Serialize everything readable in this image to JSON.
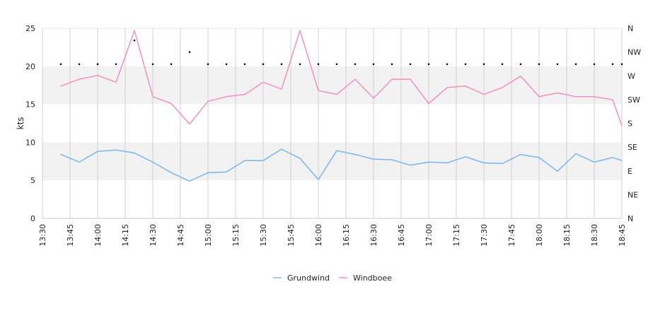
{
  "chart_data": {
    "type": "line",
    "title": "",
    "xlabel": "",
    "ylabel": "kts",
    "ylim": [
      0,
      25
    ],
    "y_ticks": [
      0,
      5,
      10,
      15,
      20,
      25
    ],
    "x_ticks": [
      "13:30",
      "13:45",
      "14:00",
      "14:15",
      "14:30",
      "14:45",
      "15:00",
      "15:15",
      "15:30",
      "15:45",
      "16:00",
      "16:15",
      "16:30",
      "16:45",
      "17:00",
      "17:15",
      "17:30",
      "17:45",
      "18:00",
      "18:15",
      "18:30",
      "18:45"
    ],
    "x_range": [
      "13:30",
      "18:45"
    ],
    "right_axis": {
      "labels": [
        "N",
        "NE",
        "E",
        "SE",
        "S",
        "SW",
        "W",
        "NW",
        "N"
      ],
      "range_deg": [
        0,
        360
      ]
    },
    "shaded_bands": [
      [
        5,
        10
      ],
      [
        15,
        20
      ]
    ],
    "grid": {
      "vertical": true,
      "horizontal": false
    },
    "legend_position": "bottom-center",
    "x": [
      "13:40",
      "13:45",
      "13:50",
      "13:55",
      "14:00",
      "14:05",
      "14:10",
      "14:15",
      "14:20",
      "14:25",
      "14:30",
      "14:35",
      "14:40",
      "14:45",
      "14:50",
      "14:55",
      "15:00",
      "15:05",
      "15:10",
      "15:15",
      "15:20",
      "15:25",
      "15:30",
      "15:35",
      "15:40",
      "15:45",
      "15:50",
      "15:55",
      "16:00",
      "16:05",
      "16:10",
      "16:15",
      "16:20",
      "16:25",
      "16:30",
      "16:35",
      "16:40",
      "16:45",
      "16:50",
      "16:55",
      "17:00",
      "17:05",
      "17:10",
      "17:15",
      "17:20",
      "17:25",
      "17:30",
      "17:35",
      "17:40",
      "17:45",
      "17:50",
      "17:55",
      "18:00",
      "18:05",
      "18:10",
      "18:15",
      "18:20",
      "18:25",
      "18:30",
      "18:35",
      "18:40",
      "18:45"
    ],
    "series": [
      {
        "name": "Grundwind",
        "color": "#7cb5ec",
        "x": [
          "13:40",
          "13:50",
          "14:00",
          "14:10",
          "14:20",
          "14:30",
          "14:40",
          "14:50",
          "15:00",
          "15:10",
          "15:20",
          "15:30",
          "15:40",
          "15:50",
          "16:00",
          "16:10",
          "16:20",
          "16:30",
          "16:40",
          "16:50",
          "17:00",
          "17:10",
          "17:20",
          "17:30",
          "17:40",
          "17:50",
          "18:00",
          "18:10",
          "18:20",
          "18:30",
          "18:40",
          "18:45"
        ],
        "values": [
          8.4,
          7.4,
          8.8,
          9.0,
          8.6,
          7.4,
          6.0,
          4.9,
          6.0,
          6.1,
          7.6,
          7.6,
          9.1,
          7.9,
          5.1,
          8.9,
          8.4,
          7.8,
          7.7,
          7.0,
          7.4,
          7.3,
          8.1,
          7.3,
          7.2,
          8.4,
          8.0,
          6.2,
          8.5,
          7.4,
          8.0,
          7.6
        ]
      },
      {
        "name": "Windboee",
        "color": "#f18fc3",
        "x": [
          "13:40",
          "13:50",
          "14:00",
          "14:10",
          "14:20",
          "14:30",
          "14:40",
          "14:50",
          "15:00",
          "15:10",
          "15:20",
          "15:30",
          "15:40",
          "15:50",
          "16:00",
          "16:10",
          "16:20",
          "16:30",
          "16:40",
          "16:50",
          "17:00",
          "17:10",
          "17:20",
          "17:30",
          "17:40",
          "17:50",
          "18:00",
          "18:10",
          "18:20",
          "18:30",
          "18:40",
          "18:45"
        ],
        "values": [
          17.4,
          18.3,
          18.8,
          17.9,
          24.7,
          16.0,
          15.1,
          12.4,
          15.4,
          16.0,
          16.3,
          17.9,
          17.0,
          24.7,
          16.8,
          16.3,
          18.3,
          15.8,
          18.3,
          18.3,
          15.1,
          17.2,
          17.4,
          16.3,
          17.2,
          18.7,
          16.0,
          16.5,
          16.0,
          16.0,
          15.6,
          12.2
        ]
      },
      {
        "name": "",
        "type": "scatter",
        "axis": "right",
        "color": "#000000",
        "x": [
          "13:40",
          "13:50",
          "14:00",
          "14:10",
          "14:20",
          "14:30",
          "14:40",
          "14:50",
          "15:00",
          "15:10",
          "15:20",
          "15:30",
          "15:40",
          "15:50",
          "16:00",
          "16:10",
          "16:20",
          "16:30",
          "16:40",
          "16:50",
          "17:00",
          "17:10",
          "17:20",
          "17:30",
          "17:40",
          "17:50",
          "18:00",
          "18:10",
          "18:20",
          "18:30",
          "18:40",
          "18:45"
        ],
        "values": [
          292,
          292,
          292,
          292,
          337,
          292,
          292,
          315,
          292,
          292,
          292,
          292,
          292,
          292,
          292,
          292,
          292,
          292,
          292,
          292,
          292,
          292,
          292,
          292,
          292,
          292,
          292,
          292,
          292,
          292,
          292,
          292
        ]
      }
    ]
  }
}
